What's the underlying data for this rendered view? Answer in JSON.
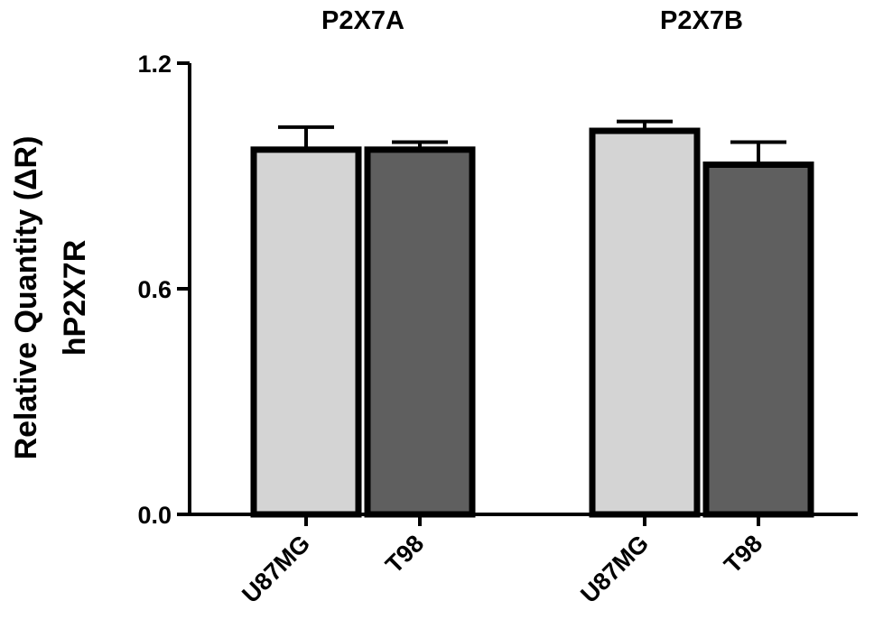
{
  "chart_data": {
    "type": "bar",
    "ylabel_lines": [
      "Relative Quantity (ΔR)",
      "hP2X7R"
    ],
    "ylim": [
      0.0,
      1.2
    ],
    "yticks": [
      0.0,
      0.6,
      1.2
    ],
    "ytick_labels": [
      "0.0",
      "0.6",
      "1.2"
    ],
    "groups": [
      {
        "title": "P2X7A",
        "bars": [
          {
            "category": "U87MG",
            "value": 0.97,
            "error": 0.06,
            "fill": "#d4d4d4"
          },
          {
            "category": "T98",
            "value": 0.97,
            "error": 0.02,
            "fill": "#5f5f5f"
          }
        ]
      },
      {
        "title": "P2X7B",
        "bars": [
          {
            "category": "U87MG",
            "value": 1.02,
            "error": 0.025,
            "fill": "#d4d4d4"
          },
          {
            "category": "T98",
            "value": 0.93,
            "error": 0.06,
            "fill": "#5f5f5f"
          }
        ]
      }
    ],
    "grid": false,
    "legend": "none"
  }
}
